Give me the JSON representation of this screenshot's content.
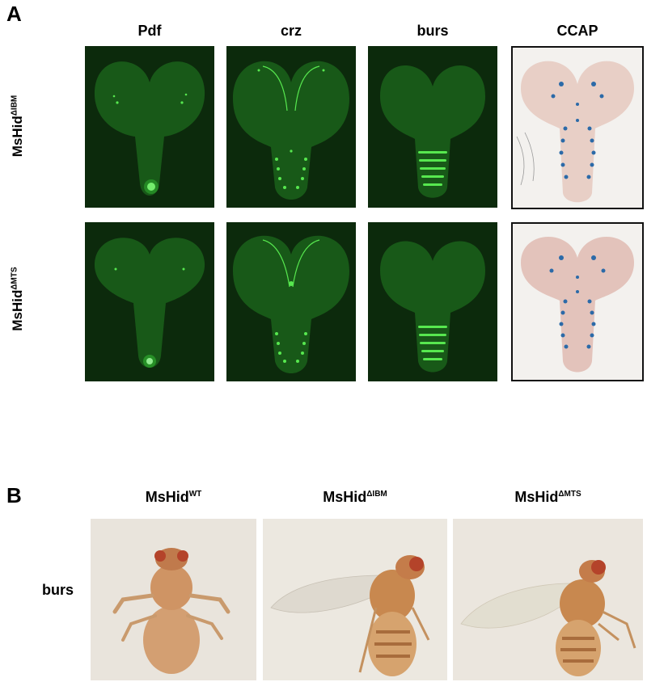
{
  "panel_a": {
    "label": "A",
    "columns": [
      "Pdf",
      "crz",
      "burs",
      "CCAP"
    ],
    "rows": [
      {
        "base": "MsHid",
        "sup": "ΔIBM"
      },
      {
        "base": "MsHid",
        "sup": "ΔMTS"
      }
    ]
  },
  "panel_b": {
    "label": "B",
    "row_label": "burs",
    "columns": [
      {
        "base": "MsHid",
        "sup": "WT"
      },
      {
        "base": "MsHid",
        "sup": "ΔIBM"
      },
      {
        "base": "MsHid",
        "sup": "ΔMTS"
      }
    ]
  },
  "colors": {
    "gfp_background": "#0c2a0c",
    "gfp_signal": "#39d23a",
    "ccap_stain": "#2b6aa8",
    "ccap_tissue": "#e8cfc6",
    "fly_body": "#c98e5f",
    "photo_background": "#e9e4dc"
  }
}
